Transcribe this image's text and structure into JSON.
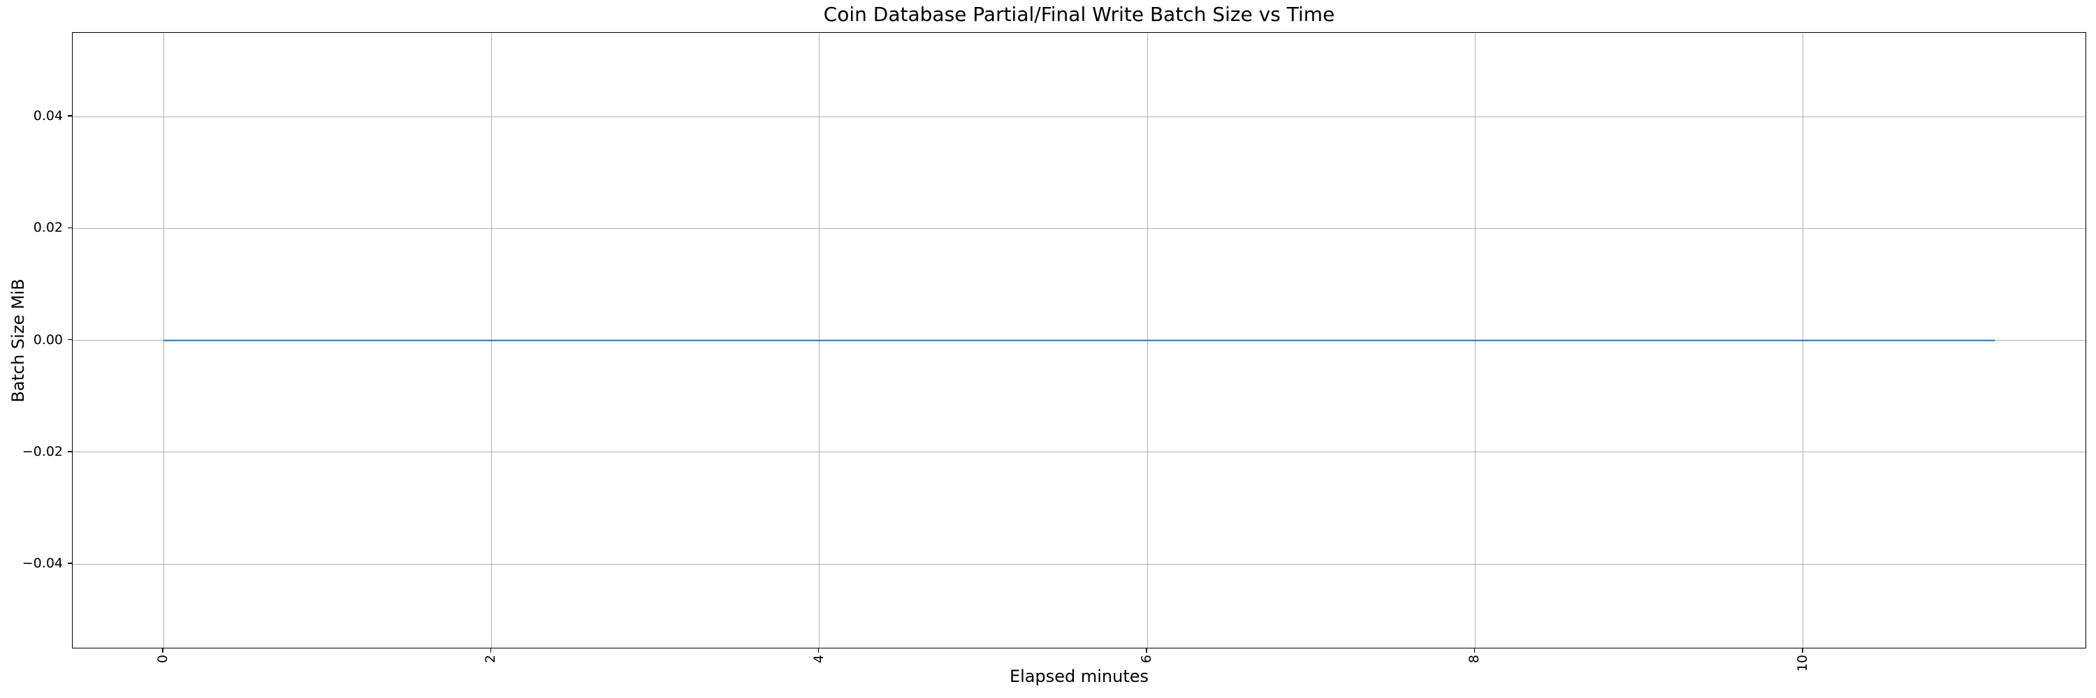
{
  "figure": {
    "background": "#ffffff"
  },
  "chart_data": {
    "type": "line",
    "title": "Coin Database Partial/Final Write Batch Size vs Time",
    "xlabel": "Elapsed minutes",
    "ylabel": "Batch Size MiB",
    "xlim": [
      -0.554,
      11.731
    ],
    "ylim": [
      -0.0552,
      0.055
    ],
    "x_ticks": [
      0,
      2,
      4,
      6,
      8,
      10
    ],
    "x_tick_labels": [
      "0",
      "2",
      "4",
      "6",
      "8",
      "10"
    ],
    "x_tick_rotation_deg": 90,
    "y_ticks": [
      0.04,
      0.02,
      0.0,
      -0.02,
      -0.04
    ],
    "y_tick_labels": [
      "0.04",
      "0.02",
      "0.00",
      "−0.02",
      "−0.04"
    ],
    "grid": true,
    "legend": "none",
    "series": [
      {
        "color": "#1f77b4",
        "points": [
          [
            0,
            0
          ],
          [
            11.17,
            0
          ]
        ]
      }
    ]
  },
  "colors": {
    "line": "#1f77b4",
    "grid": "#b0b0b0",
    "spine": "#000000",
    "text": "#000000"
  }
}
